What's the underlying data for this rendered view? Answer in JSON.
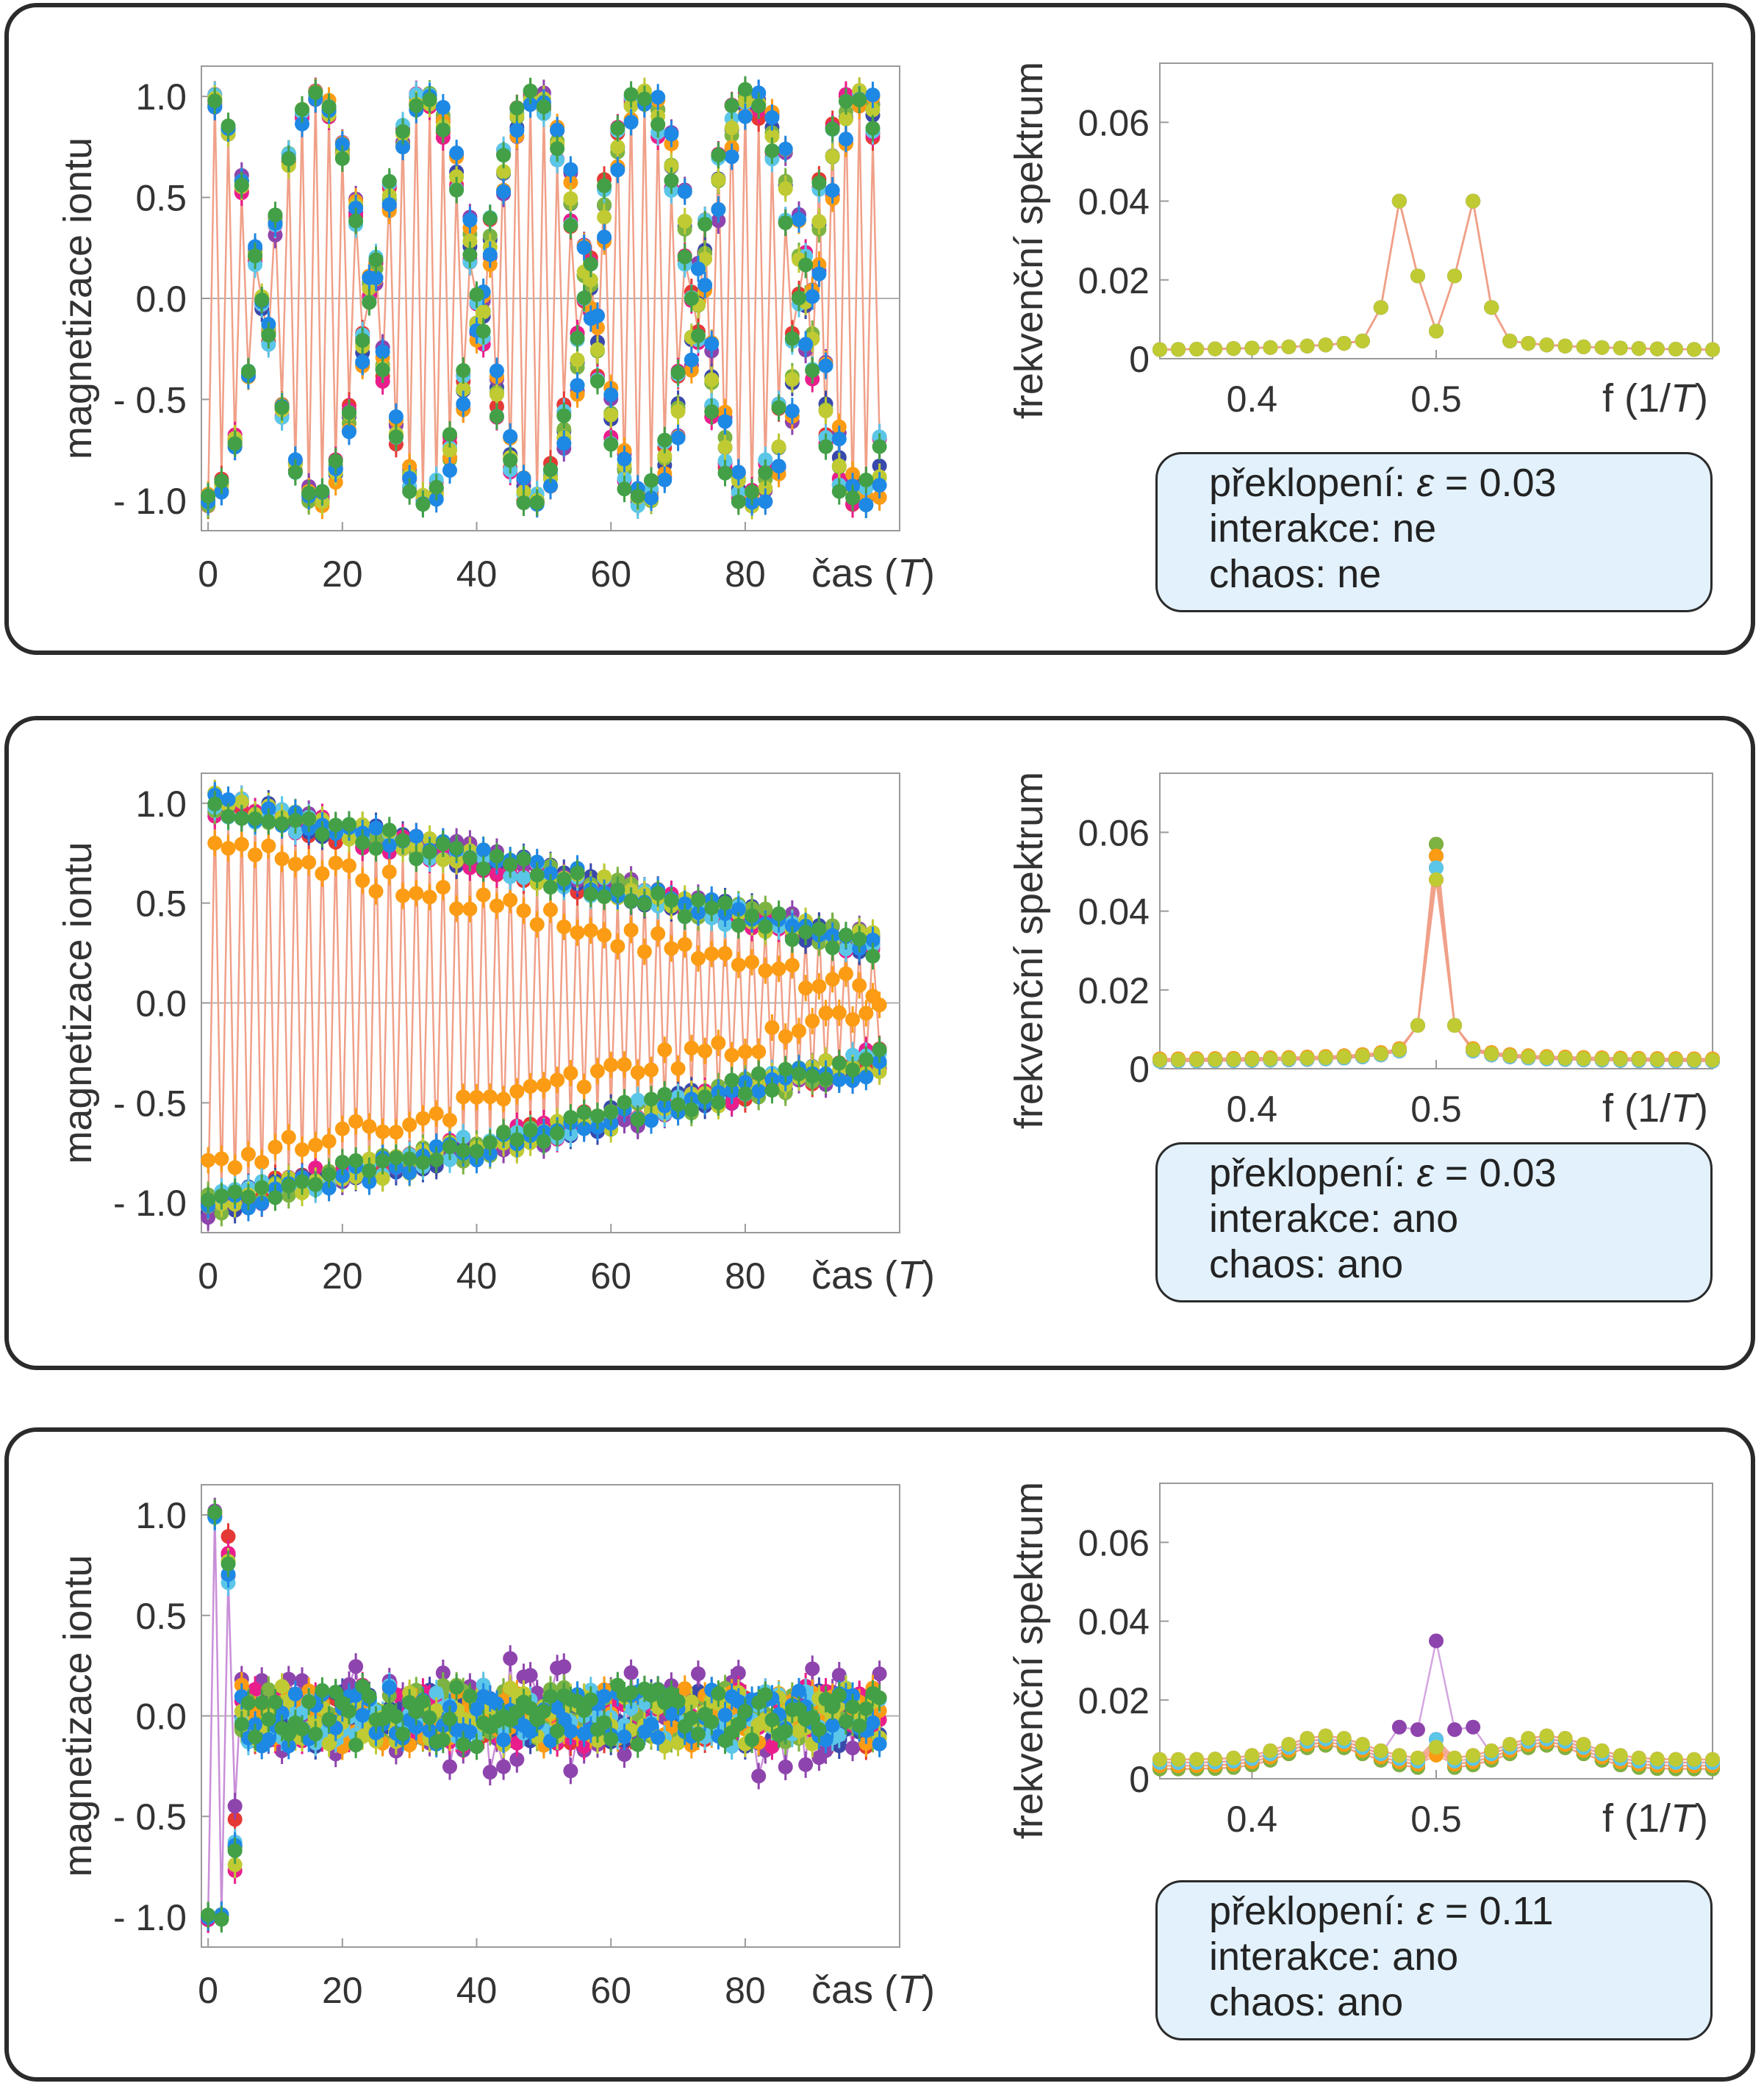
{
  "panels": [
    {
      "chart_data": [
        {
          "type": "scatter",
          "ylabel": "magnetizace iontu",
          "xlabel": "čas",
          "xlabel_unit": "T",
          "xlim": [
            -1,
            103
          ],
          "ylim": [
            -1.15,
            1.15
          ],
          "xticks": [
            0,
            20,
            40,
            60,
            80
          ],
          "yticks": [
            1.0,
            0.5,
            0.0,
            -0.5,
            -1.0
          ],
          "ytick_labels": [
            "1.0",
            "0.5",
            "0.0",
            "- 0.5",
            "- 1.0"
          ],
          "n_runs": 10,
          "n_points": 101,
          "envelope": "cos(2π t / 32) beating, no decay",
          "series": [
            {
              "name": "",
              "envelope_period": 32,
              "decay": 0,
              "noise": 0.03,
              "color": "#e53935"
            },
            {
              "name": "",
              "envelope_period": 32.5,
              "decay": 0,
              "noise": 0.03,
              "color": "#3949ab"
            }
          ]
        },
        {
          "type": "line",
          "ylabel": "frekvenční spektrum",
          "xlabel": "f",
          "xlabel_unit": "1/T",
          "xlim": [
            0.35,
            0.65
          ],
          "ylim": [
            0,
            0.075
          ],
          "xticks": [
            0.4,
            0.5
          ],
          "yticks": [
            0,
            0.02,
            0.04,
            0.06
          ],
          "ytick_labels": [
            "0",
            "0.02",
            "0.04",
            "0.06"
          ],
          "peaks": [
            {
              "f": 0.48,
              "value": 0.04
            },
            {
              "f": 0.52,
              "value": 0.04
            }
          ],
          "center_value": 0.008
        }
      ],
      "info": {
        "flip_label": "překlopení: ",
        "eps_symbol": "ε",
        "flip_value": " = 0.03",
        "interaction": "interakce: ne",
        "chaos": "chaos: ne"
      }
    },
    {
      "chart_data": [
        {
          "type": "scatter",
          "ylabel": "magnetizace iontu",
          "xlabel": "čas",
          "xlabel_unit": "T",
          "xlim": [
            -1,
            103
          ],
          "ylim": [
            -1.15,
            1.15
          ],
          "xticks": [
            0,
            20,
            40,
            60,
            80
          ],
          "yticks": [
            1.0,
            0.5,
            0.0,
            -0.5,
            -1.0
          ],
          "ytick_labels": [
            "1.0",
            "0.5",
            "0.0",
            "- 0.5",
            "- 1.0"
          ],
          "n_runs": 10,
          "n_points": 101,
          "envelope": "period-doubled oscillation, slow decay from 1.0 to ~0.25 at t=100",
          "series": [
            {
              "name": "",
              "start": 1.0,
              "end": 0.25,
              "noise": 0.05,
              "color": "#e53935"
            },
            {
              "name": "",
              "start": 0.78,
              "end": 0.1,
              "noise": 0.05,
              "color": "#fb9c14"
            }
          ]
        },
        {
          "type": "line",
          "ylabel": "frekvenční spektrum",
          "xlabel": "f",
          "xlabel_unit": "1/T",
          "xlim": [
            0.35,
            0.65
          ],
          "ylim": [
            0,
            0.075
          ],
          "xticks": [
            0.4,
            0.5
          ],
          "yticks": [
            0,
            0.02,
            0.04,
            0.06
          ],
          "ytick_labels": [
            "0",
            "0.02",
            "0.04",
            "0.06"
          ],
          "peaks": [
            {
              "f": 0.5,
              "value": 0.057
            }
          ],
          "center_value": 0.057
        }
      ],
      "info": {
        "flip_label": "překlopení: ",
        "eps_symbol": "ε",
        "flip_value": " = 0.03",
        "interaction": "interakce: ano",
        "chaos": "chaos: ano"
      }
    },
    {
      "chart_data": [
        {
          "type": "scatter",
          "ylabel": "magnetizace iontu",
          "xlabel": "čas",
          "xlabel_unit": "T",
          "xlim": [
            -1,
            103
          ],
          "ylim": [
            -1.15,
            1.15
          ],
          "xticks": [
            0,
            20,
            40,
            60,
            80
          ],
          "yticks": [
            1.0,
            0.5,
            0.0,
            -0.5,
            -1.0
          ],
          "ytick_labels": [
            "1.0",
            "0.5",
            "0.0",
            "- 0.5",
            "- 1.0"
          ],
          "n_runs": 10,
          "n_points": 101,
          "envelope": "fast decay to ~0 within t≈15, then fluctuations ±0.3",
          "series": [
            {
              "name": "",
              "start": 1.0,
              "end": 0.05,
              "noise": 0.18,
              "color": "#e53935"
            },
            {
              "name": "",
              "start": 1.0,
              "end": 0.0,
              "noise": 0.3,
              "color": "#8e44ad"
            }
          ]
        },
        {
          "type": "line",
          "ylabel": "frekvenční spektrum",
          "xlabel": "f",
          "xlabel_unit": "1/T",
          "xlim": [
            0.35,
            0.65
          ],
          "ylim": [
            0,
            0.075
          ],
          "xticks": [
            0.4,
            0.5
          ],
          "yticks": [
            0,
            0.02,
            0.04,
            0.06
          ],
          "ytick_labels": [
            "0",
            "0.02",
            "0.04",
            "0.06"
          ],
          "peaks": [
            {
              "f": 0.5,
              "value": 0.035
            }
          ],
          "center_value": 0.01,
          "broad_bump": [
            {
              "f": 0.44,
              "value": 0.008
            },
            {
              "f": 0.56,
              "value": 0.008
            }
          ]
        }
      ],
      "info": {
        "flip_label": "překlopení: ",
        "eps_symbol": "ε",
        "flip_value": " = 0.11",
        "interaction": "interakce: ano",
        "chaos": "chaos: ano"
      }
    }
  ],
  "palette": [
    "#e53935",
    "#3949ab",
    "#8e44ad",
    "#e91e8c",
    "#7cb342",
    "#fb9c14",
    "#5bc6e8",
    "#c0ca33",
    "#1e88e5",
    "#43a047"
  ],
  "line_color": "#f0a088"
}
